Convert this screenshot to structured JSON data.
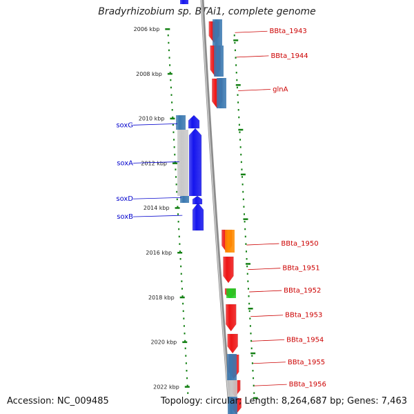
{
  "title": "Bradyrhizobium sp. BTAi1, complete genome",
  "footer": {
    "accession": "Accession: NC_009485",
    "topology": "Topology: circular; Length: 8,264,687 bp; Genes: 7,463"
  },
  "colors": {
    "forward": "#1515ee",
    "reverse": "#ee1515",
    "orange": "#ff8c00",
    "green": "#22cc22",
    "blue_cds": "#3a78b0",
    "grey_cds": "#c8c8c8",
    "tick": "#138013",
    "label_blue": "#0000cc",
    "label_red": "#cc0000"
  },
  "scale": {
    "labels": [
      "2006 kbp",
      "2008 kbp",
      "2010 kbp",
      "2012 kbp",
      "2014 kbp",
      "2016 kbp",
      "2018 kbp",
      "2020 kbp",
      "2022 kbp"
    ],
    "positions_kbp": [
      2006,
      2008,
      2010,
      2012,
      2014,
      2016,
      2018,
      2020,
      2022
    ]
  },
  "labels_left": [
    {
      "name": "soxG",
      "kbp": 2010.3
    },
    {
      "name": "soxA",
      "kbp": 2012.0
    },
    {
      "name": "soxD",
      "kbp": 2013.6
    },
    {
      "name": "soxB",
      "kbp": 2014.4
    }
  ],
  "labels_right": [
    {
      "name": "BBta_1943",
      "kbp": 2006.1
    },
    {
      "name": "BBta_1944",
      "kbp": 2007.2
    },
    {
      "name": "glnA",
      "kbp": 2008.7
    },
    {
      "name": "BBta_1950",
      "kbp": 2015.6
    },
    {
      "name": "BBta_1951",
      "kbp": 2016.7
    },
    {
      "name": "BBta_1952",
      "kbp": 2017.7
    },
    {
      "name": "BBta_1953",
      "kbp": 2018.8
    },
    {
      "name": "BBta_1954",
      "kbp": 2019.9
    },
    {
      "name": "BBta_1955",
      "kbp": 2020.9
    },
    {
      "name": "BBta_1956",
      "kbp": 2021.9
    }
  ]
}
